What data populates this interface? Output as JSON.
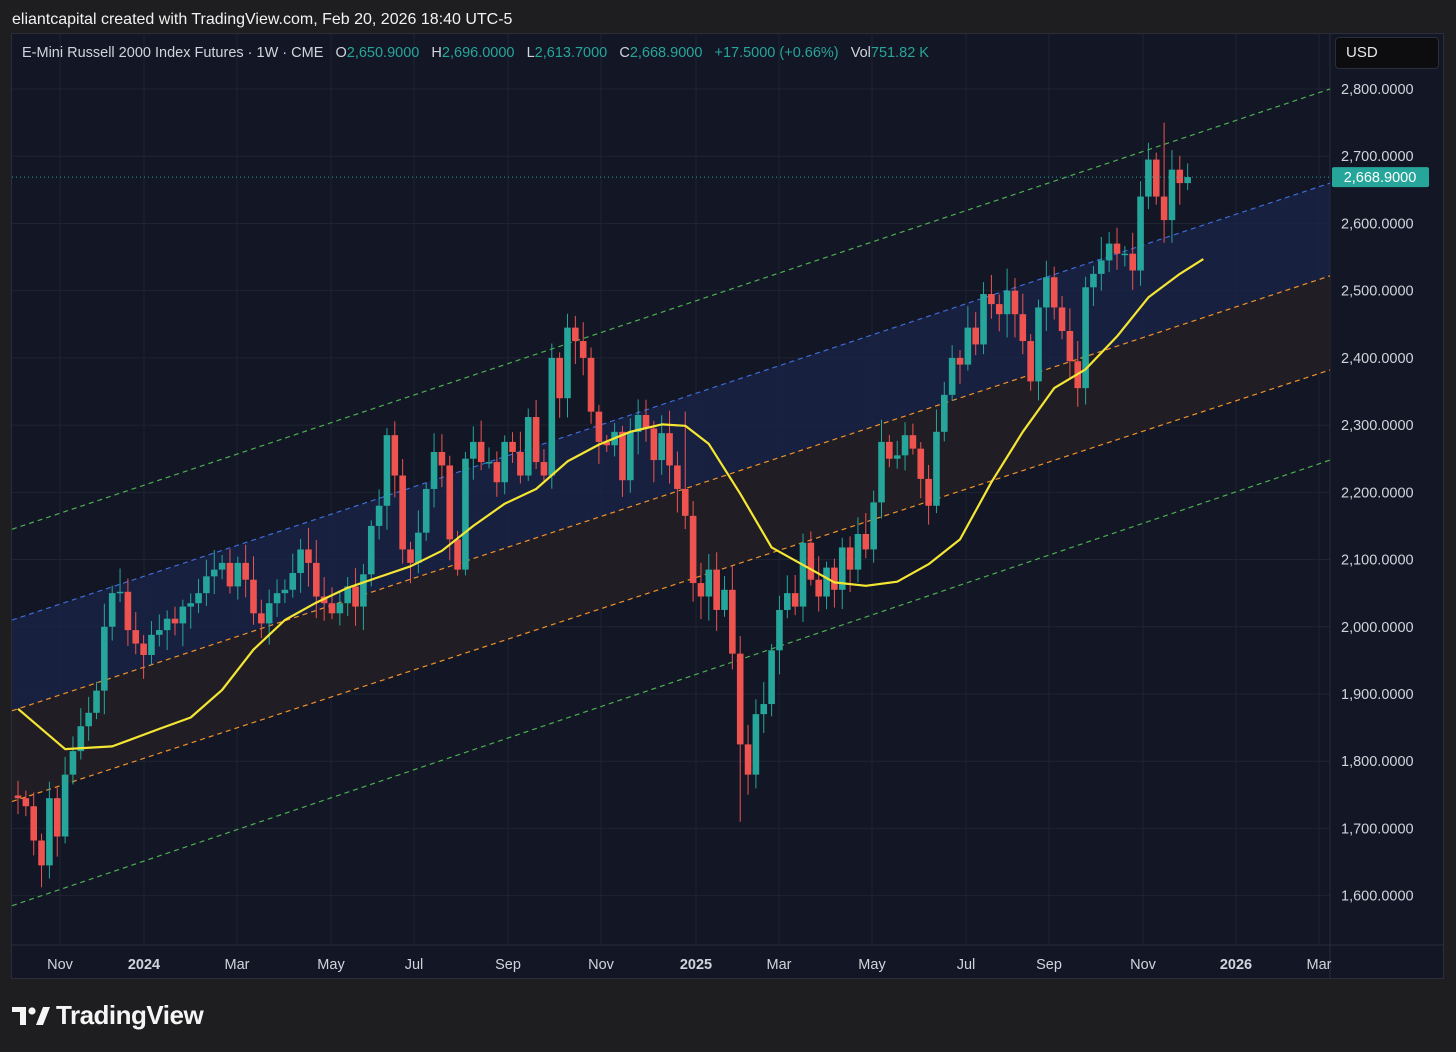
{
  "caption": "eliantcapital created with TradingView.com, Feb 20, 2026 18:40 UTC-5",
  "legend": {
    "symbol": "E-Mini Russell 2000 Index Futures · 1W · CME",
    "o_label": "O",
    "o_value": "2,650.9000",
    "h_label": "H",
    "h_value": "2,696.0000",
    "l_label": "L",
    "l_value": "2,613.7000",
    "c_label": "C",
    "c_value": "2,668.9000",
    "change": "+17.5000 (+0.66%)",
    "vol_label": "Vol",
    "vol_value": "751.82 K"
  },
  "currency_button": "USD",
  "brand": "TradingView",
  "colors": {
    "up": "#26a69a",
    "down": "#ef5350",
    "ma": "#f5e633",
    "outer_channel": "#4caf50",
    "upper_mid": "#3d6bd6",
    "lower_mid": "#f0912a"
  },
  "chart_data": {
    "type": "candlestick",
    "interval": "1W",
    "ylim": [
      1530,
      2850
    ],
    "y_ticks": [
      "2,800.0000",
      "2,700.0000",
      "2,600.0000",
      "2,500.0000",
      "2,400.0000",
      "2,300.0000",
      "2,200.0000",
      "2,100.0000",
      "2,000.0000",
      "1,900.0000",
      "1,800.0000",
      "1,700.0000",
      "1,600.0000"
    ],
    "x_ticks": [
      {
        "label": "Nov",
        "bold": false
      },
      {
        "label": "2024",
        "bold": true
      },
      {
        "label": "Mar",
        "bold": false
      },
      {
        "label": "May",
        "bold": false
      },
      {
        "label": "Jul",
        "bold": false
      },
      {
        "label": "Sep",
        "bold": false
      },
      {
        "label": "Nov",
        "bold": false
      },
      {
        "label": "2025",
        "bold": true
      },
      {
        "label": "Mar",
        "bold": false
      },
      {
        "label": "May",
        "bold": false
      },
      {
        "label": "Jul",
        "bold": false
      },
      {
        "label": "Sep",
        "bold": false
      },
      {
        "label": "Nov",
        "bold": false
      },
      {
        "label": "2026",
        "bold": true
      },
      {
        "label": "Mar",
        "bold": false
      }
    ],
    "last_price": "2,668.9000",
    "last_value": 2668.9,
    "closes": [
      1745,
      1733,
      1682,
      1645,
      1745,
      1688,
      1780,
      1815,
      1852,
      1872,
      1905,
      2000,
      2050,
      2052,
      1995,
      1975,
      1958,
      1988,
      1995,
      2012,
      2005,
      2030,
      2035,
      2050,
      2075,
      2085,
      2095,
      2060,
      2095,
      2070,
      2020,
      2005,
      2035,
      2050,
      2055,
      2080,
      2115,
      2095,
      2045,
      2035,
      2020,
      2035,
      2060,
      2030,
      2078,
      2150,
      2180,
      2285,
      2225,
      2115,
      2095,
      2140,
      2205,
      2260,
      2240,
      2130,
      2085,
      2250,
      2275,
      2245,
      2245,
      2215,
      2275,
      2260,
      2225,
      2312,
      2245,
      2225,
      2400,
      2340,
      2445,
      2425,
      2400,
      2320,
      2275,
      2270,
      2290,
      2218,
      2290,
      2315,
      2295,
      2248,
      2288,
      2240,
      2205,
      2165,
      2065,
      2045,
      2085,
      2025,
      2055,
      1960,
      1825,
      1780,
      1870,
      1885,
      1965,
      2025,
      2050,
      2030,
      2125,
      2070,
      2045,
      2088,
      2055,
      2118,
      2085,
      2138,
      2115,
      2185,
      2275,
      2250,
      2255,
      2285,
      2265,
      2220,
      2180,
      2290,
      2345,
      2400,
      2390,
      2445,
      2420,
      2495,
      2480,
      2465,
      2500,
      2465,
      2425,
      2365,
      2475,
      2520,
      2475,
      2440,
      2395,
      2355,
      2505,
      2525,
      2545,
      2570,
      2555,
      2555,
      2530,
      2640,
      2695,
      2640,
      2605,
      2680,
      2660,
      2668.9
    ],
    "highlights": [
      {
        "index": 116,
        "value": 2152
      },
      {
        "index": 85,
        "value": 2320
      },
      {
        "index": 92,
        "value": 1710
      },
      {
        "index": 146,
        "value": 2750
      }
    ],
    "moving_average": [
      [
        0,
        1878
      ],
      [
        6,
        1818
      ],
      [
        12,
        1822
      ],
      [
        18,
        1848
      ],
      [
        22,
        1865
      ],
      [
        26,
        1906
      ],
      [
        30,
        1966
      ],
      [
        34,
        2010
      ],
      [
        38,
        2036
      ],
      [
        42,
        2058
      ],
      [
        46,
        2074
      ],
      [
        50,
        2090
      ],
      [
        54,
        2113
      ],
      [
        58,
        2150
      ],
      [
        62,
        2183
      ],
      [
        66,
        2205
      ],
      [
        70,
        2246
      ],
      [
        74,
        2271
      ],
      [
        78,
        2290
      ],
      [
        82,
        2301
      ],
      [
        85,
        2299
      ],
      [
        88,
        2272
      ],
      [
        92,
        2198
      ],
      [
        96,
        2118
      ],
      [
        100,
        2092
      ],
      [
        104,
        2066
      ],
      [
        108,
        2061
      ],
      [
        112,
        2067
      ],
      [
        116,
        2093
      ],
      [
        120,
        2130
      ],
      [
        124,
        2215
      ],
      [
        128,
        2290
      ],
      [
        132,
        2355
      ],
      [
        136,
        2383
      ],
      [
        140,
        2432
      ],
      [
        144,
        2490
      ],
      [
        148,
        2525
      ],
      [
        151,
        2547
      ]
    ],
    "channel": {
      "outer_upper": [
        2145,
        2800
      ],
      "upper_mid": [
        2010,
        2660
      ],
      "lower_upper": [
        1875,
        2522
      ],
      "lower_lower": [
        1740,
        2382
      ],
      "outer_lower": [
        1585,
        2248
      ]
    }
  }
}
